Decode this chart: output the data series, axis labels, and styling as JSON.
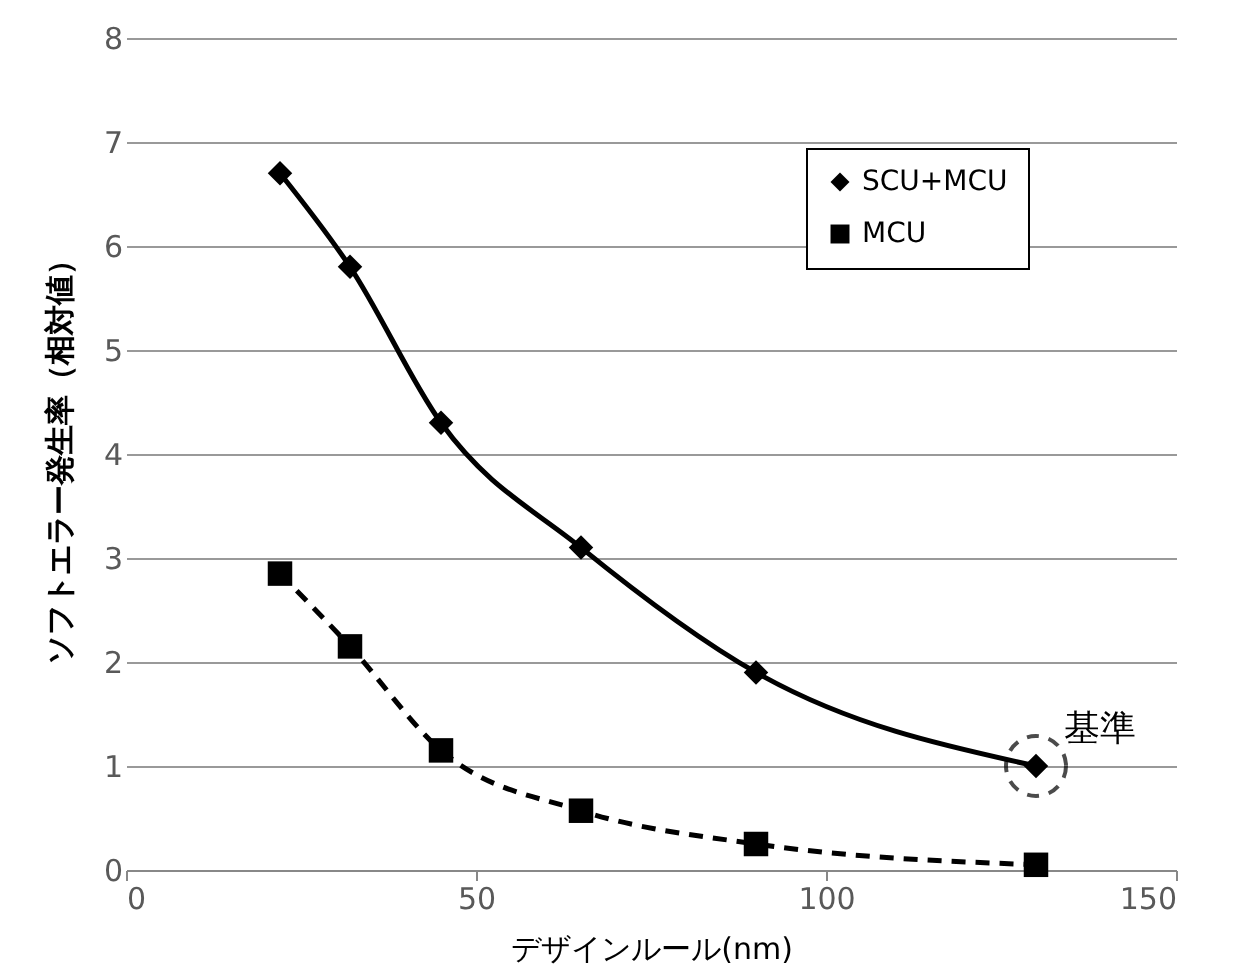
{
  "chart_data": {
    "type": "line",
    "xlabel": "デザインルール(nm)",
    "ylabel": "ソフトエラー発生率（相対値）",
    "x": [
      22,
      32,
      45,
      65,
      90,
      130
    ],
    "series": [
      {
        "name": "SCU+MCU",
        "color": "#000000",
        "values": [
          6.7,
          5.8,
          4.3,
          3.1,
          1.9,
          1.0
        ],
        "marker": "diamond",
        "line_style": "solid"
      },
      {
        "name": "MCU",
        "color": "#000000",
        "values": [
          2.85,
          2.15,
          1.15,
          0.57,
          0.25,
          0.05
        ],
        "marker": "square",
        "line_style": "dashed"
      }
    ],
    "xlim": [
      0,
      150
    ],
    "xticks": [
      0,
      50,
      100,
      150
    ],
    "ylim": [
      0,
      8
    ],
    "yticks": [
      0,
      1,
      2,
      3,
      4,
      5,
      6,
      7,
      8
    ],
    "grid": "y",
    "legend": "top right",
    "annotations": [
      {
        "text": "基準",
        "x": 130,
        "y": 1.0
      }
    ]
  }
}
